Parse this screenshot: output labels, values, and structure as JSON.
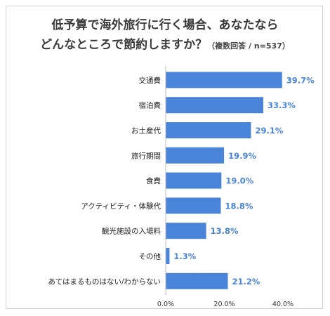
{
  "title": {
    "line1": "低予算で海外旅行に行く場合、あなたなら",
    "line2": "どんなところで節約しますか？",
    "note": "（複数回答 / n=537）"
  },
  "colors": {
    "bar": "#4a84d8",
    "value_label": "#4a84d8",
    "axis": "#bbbbbb"
  },
  "chart_data": {
    "type": "bar",
    "orientation": "horizontal",
    "categories": [
      "交通費",
      "宿泊費",
      "お土産代",
      "旅行期間",
      "食費",
      "アクティビティ・体験代",
      "観光施設の入場料",
      "その他",
      "あてはまるものはない/わからない"
    ],
    "values": [
      39.7,
      33.3,
      29.1,
      19.9,
      19.0,
      18.8,
      13.8,
      1.3,
      21.2
    ],
    "value_labels": [
      "39.7%",
      "33.3%",
      "29.1%",
      "19.9%",
      "19.0%",
      "18.8%",
      "13.8%",
      "1.3%",
      "21.2%"
    ],
    "xlim": [
      0,
      40
    ],
    "xticks": [
      0,
      20,
      40
    ],
    "xtick_labels": [
      "0.0%",
      "20.0%",
      "40.0%"
    ],
    "grid": false,
    "legend": "none"
  }
}
